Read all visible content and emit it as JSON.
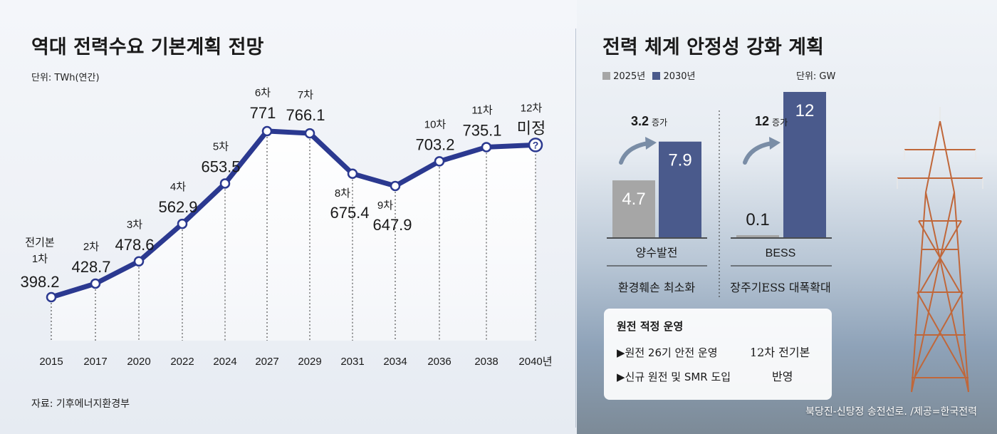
{
  "left_panel": {
    "title": "역대 전력수요 기본계획 전망",
    "unit": "단위: TWh(연간)",
    "source": "자료: 기후에너지환경부"
  },
  "right_panel": {
    "title": "전력 체계 안정성 강화 계획",
    "unit": "단위: GW",
    "legend": [
      "2025년",
      "2030년"
    ],
    "groups": [
      {
        "label": "양수발전",
        "note": "3.2",
        "note_suffix": "증가",
        "subtitle": "환경훼손 최소화"
      },
      {
        "label": "BESS",
        "note": "12",
        "note_suffix": "증가",
        "subtitle": "장주기ESS 대폭확대"
      }
    ],
    "info_box": {
      "title": "원전 적정 운영",
      "items": [
        "▶원전 26기 안전 운영",
        "▶신규 원전 및 SMR 도입"
      ],
      "handwritten": [
        "12차 전기본",
        "반영"
      ]
    },
    "caption": "북당진-신탕정 송전선로. /제공=한국전력"
  },
  "colors": {
    "line": "#2b3990",
    "bar_2025": "#a6a6a6",
    "bar_2030": "#4a5a8c",
    "arrow": "#7a8da6"
  },
  "chart_data": [
    {
      "type": "line",
      "title": "역대 전력수요 기본계획 전망",
      "ylabel": "단위: TWh(연간)",
      "x": [
        "2015",
        "2017",
        "2020",
        "2022",
        "2024",
        "2027",
        "2029",
        "2031",
        "2034",
        "2036",
        "2038",
        "2040년"
      ],
      "series": [
        {
          "values": [
            398.2,
            428.7,
            478.6,
            562.9,
            653.5,
            771,
            766.1,
            675.4,
            647.9,
            703.2,
            735.1,
            null
          ],
          "value_labels": [
            "398.2",
            "428.7",
            "478.6",
            "562.9",
            "653.5",
            "771",
            "766.1",
            "675.4",
            "647.9",
            "703.2",
            "735.1",
            "미정"
          ],
          "plan_labels": [
            "1차",
            "2차",
            "3차",
            "4차",
            "5차",
            "6차",
            "7차",
            "8차",
            "9차",
            "10차",
            "11차",
            "12차"
          ]
        }
      ],
      "extra_labels": {
        "first_plan_prefix": "전기본",
        "unknown_marker": "?"
      },
      "grid": false
    },
    {
      "type": "bar",
      "title": "전력 체계 안정성 강화 계획",
      "ylabel": "단위: GW",
      "categories": [
        "양수발전",
        "BESS"
      ],
      "series": [
        {
          "name": "2025년",
          "values": [
            4.7,
            0.1
          ]
        },
        {
          "name": "2030년",
          "values": [
            7.9,
            12
          ]
        }
      ],
      "legend": "top-left"
    }
  ]
}
